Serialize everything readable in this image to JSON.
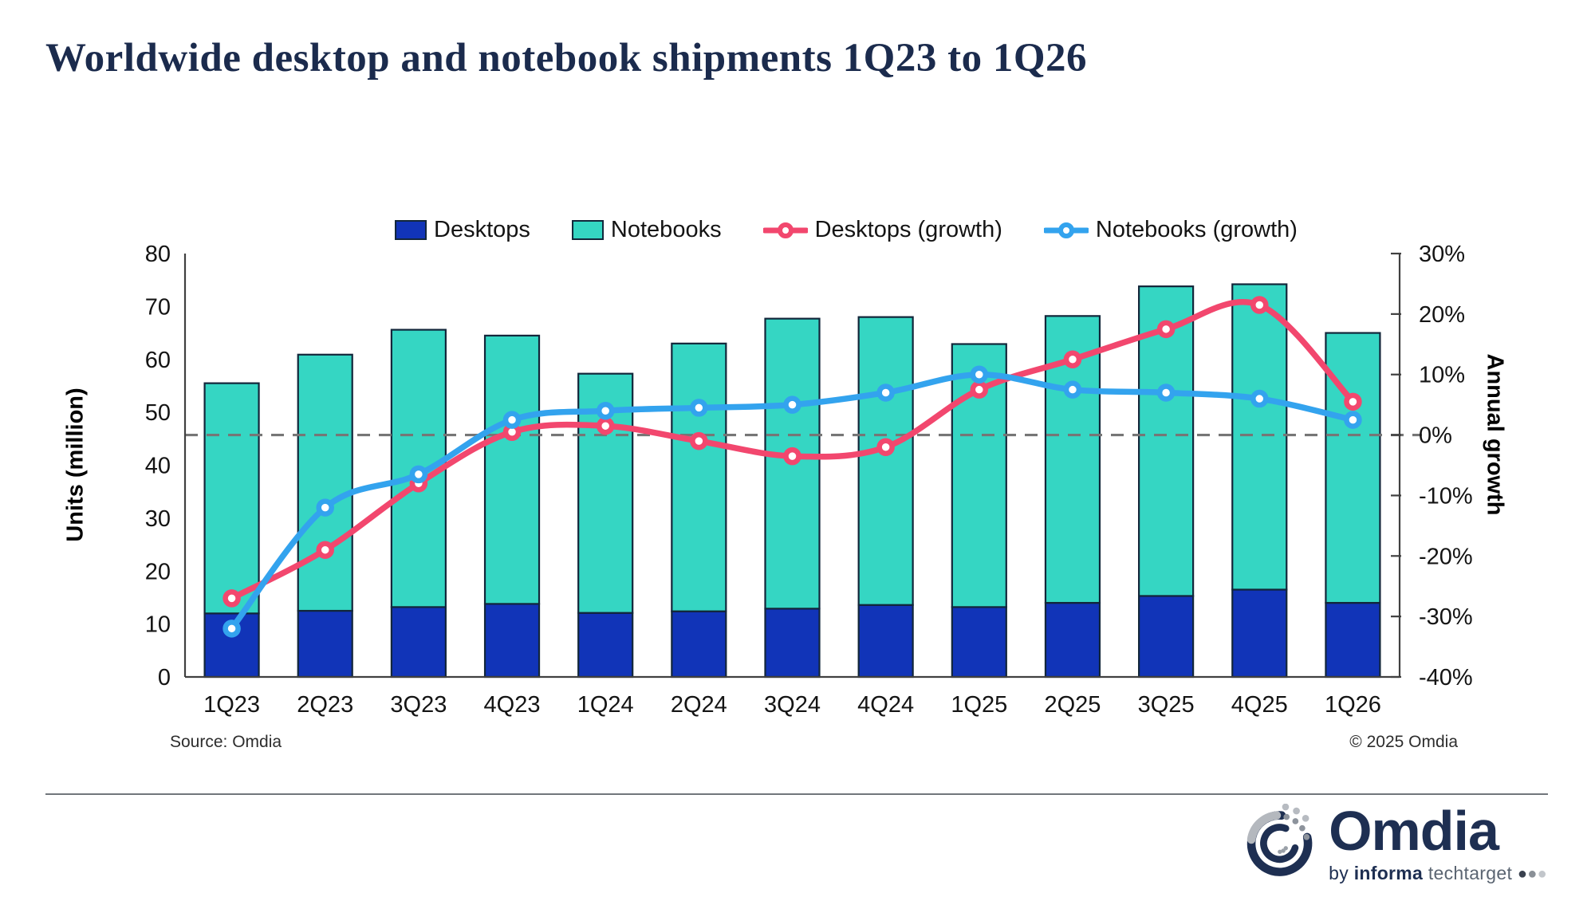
{
  "title": "Worldwide desktop and notebook shipments 1Q23 to 1Q26",
  "source_note": "Source: Omdia",
  "copyright": "© 2025 Omdia",
  "logo": {
    "wordmark": "Omdia",
    "byline_by": "by ",
    "byline_informa": "informa",
    "byline_tech": " techtarget ",
    "byline_dot": "●"
  },
  "colors": {
    "title_navy": "#1b2b4d",
    "desktop_bar": "#1134b8",
    "notebook_bar": "#35d6c3",
    "bar_outline": "#12263a",
    "desktops_growth_line": "#f2476e",
    "notebooks_growth_line": "#33a3ee",
    "zero_dashed_line": "#767676",
    "axis_line": "#404040",
    "tick_text": "#141414"
  },
  "chart_data": {
    "type": "bar",
    "subtype": "stacked-bars-with-growth-lines",
    "stacked": true,
    "legend_position": "top",
    "grid": false,
    "categories": [
      "1Q23",
      "2Q23",
      "3Q23",
      "4Q23",
      "1Q24",
      "2Q24",
      "3Q24",
      "4Q24",
      "1Q25",
      "2Q25",
      "3Q25",
      "4Q25",
      "1Q26"
    ],
    "series": [
      {
        "name": "Desktops",
        "type": "bar",
        "axis": "left",
        "color": "#1134b8",
        "values": [
          12.0,
          12.5,
          13.2,
          13.8,
          12.1,
          12.4,
          12.9,
          13.6,
          13.2,
          14.0,
          15.3,
          16.5,
          14.0
        ]
      },
      {
        "name": "Notebooks",
        "type": "bar",
        "axis": "left",
        "color": "#35d6c3",
        "values": [
          43.5,
          48.4,
          52.4,
          50.7,
          45.2,
          50.6,
          54.8,
          54.4,
          49.7,
          54.2,
          58.5,
          57.7,
          51.0
        ]
      },
      {
        "name": "Desktops (growth)",
        "type": "line",
        "axis": "right",
        "color": "#f2476e",
        "values": [
          -27,
          -19,
          -8,
          0.5,
          1.5,
          -1,
          -3.5,
          -2,
          7.5,
          12.5,
          17.5,
          21.5,
          5.5
        ]
      },
      {
        "name": "Notebooks (growth)",
        "type": "line",
        "axis": "right",
        "color": "#33a3ee",
        "values": [
          -32,
          -12,
          -6.5,
          2.5,
          4,
          4.5,
          5,
          7,
          10,
          7.5,
          7,
          6,
          2.5
        ]
      }
    ],
    "left_axis": {
      "title": "Units (million)",
      "range": [
        0,
        80
      ],
      "ticks": [
        0,
        10,
        20,
        30,
        40,
        50,
        60,
        70,
        80
      ]
    },
    "right_axis": {
      "title": "Annual growth",
      "range": [
        -40,
        30
      ],
      "ticks": [
        30,
        20,
        10,
        0,
        -10,
        -20,
        -30,
        -40
      ],
      "tick_suffix": "%"
    },
    "zero_line": {
      "axis": "right",
      "value": 0,
      "style": "dashed"
    }
  }
}
